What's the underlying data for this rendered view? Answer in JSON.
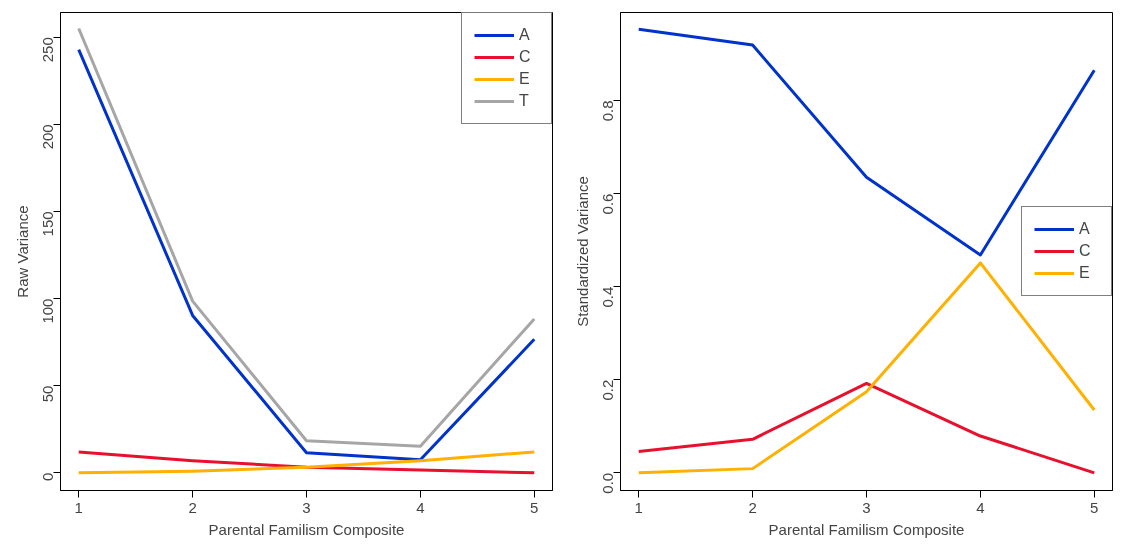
{
  "chart_data": [
    {
      "type": "line",
      "xlabel": "Parental Familism Composite",
      "ylabel": "Raw Variance",
      "x": [
        1,
        2,
        3,
        4,
        5
      ],
      "xlim": [
        0.84,
        5.16
      ],
      "xticks": [
        1,
        2,
        3,
        4,
        5
      ],
      "ylim": [
        -10.2,
        264.2
      ],
      "yticks": [
        0,
        50,
        100,
        150,
        200,
        250
      ],
      "grid": false,
      "legend": "top right",
      "marker": "none",
      "line_style": "solid",
      "series": [
        {
          "name": "A",
          "color": "#0033cc",
          "values": [
            242.9,
            90.3,
            11.5,
            7.4,
            76.6
          ]
        },
        {
          "name": "C",
          "color": "#e8112d",
          "values": [
            11.9,
            6.9,
            3.2,
            1.5,
            0
          ]
        },
        {
          "name": "E",
          "color": "#ffb000",
          "values": [
            0,
            0.9,
            3.2,
            6.9,
            11.9
          ]
        },
        {
          "name": "T",
          "color": "#a6a6a6",
          "values": [
            255,
            98.5,
            18.4,
            15.2,
            88.3
          ]
        }
      ]
    },
    {
      "type": "line",
      "xlabel": "Parental Familism Composite",
      "ylabel": "Standardized Variance",
      "x": [
        1,
        2,
        3,
        4,
        5
      ],
      "xlim": [
        0.84,
        5.16
      ],
      "xticks": [
        1,
        2,
        3,
        4,
        5
      ],
      "ylim": [
        -0.038,
        0.989
      ],
      "yticks": [
        {
          "value": 0,
          "label": "0.0"
        },
        0.2,
        0.4,
        0.6,
        0.8
      ],
      "grid": false,
      "legend": "right",
      "marker": "none",
      "line_style": "solid",
      "series": [
        {
          "name": "A",
          "color": "#0033cc",
          "values": [
            0.953,
            0.919,
            0.635,
            0.468,
            0.865
          ]
        },
        {
          "name": "C",
          "color": "#e8112d",
          "values": [
            0.046,
            0.072,
            0.192,
            0.079,
            0
          ]
        },
        {
          "name": "E",
          "color": "#ffb000",
          "values": [
            0,
            0.009,
            0.174,
            0.451,
            0.135
          ]
        }
      ]
    }
  ]
}
